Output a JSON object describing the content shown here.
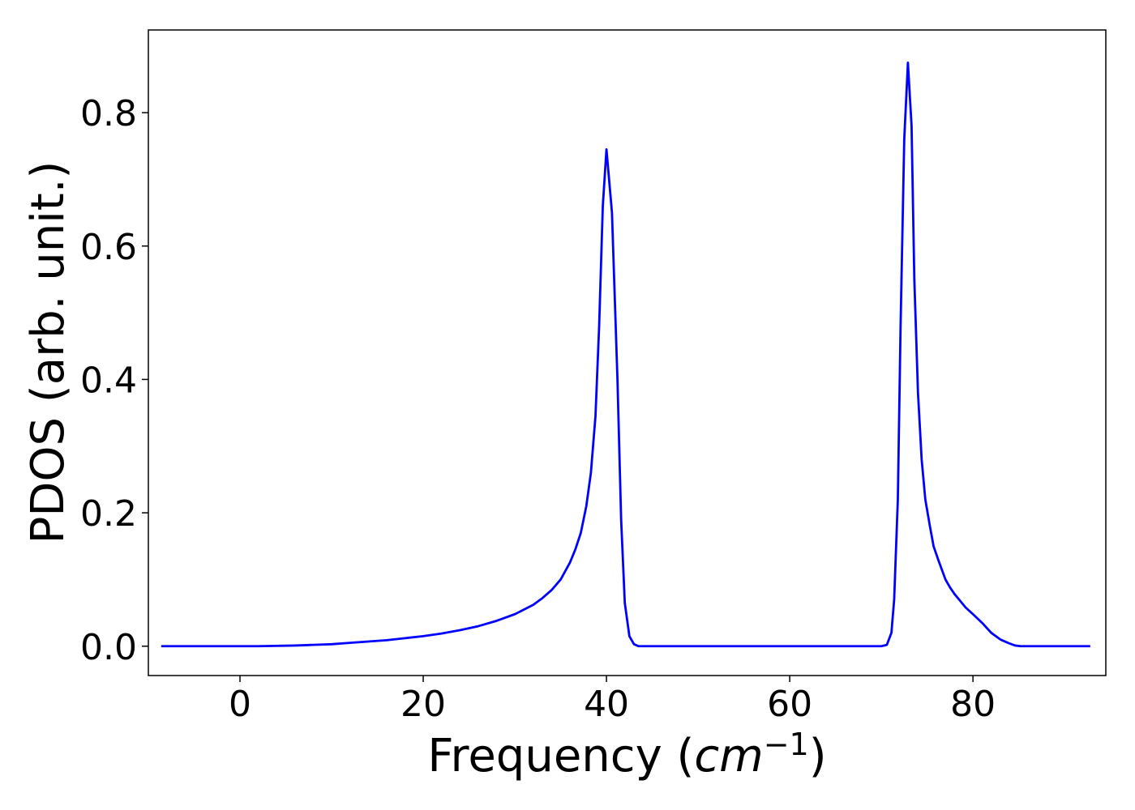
{
  "chart_data": {
    "type": "line",
    "xlabel": {
      "prefix": "Frequency (",
      "math_base": "cm",
      "math_sup": "−1",
      "suffix": ")"
    },
    "ylabel": "PDOS (arb. unit.)",
    "xlim": [
      -10,
      94.5
    ],
    "ylim": [
      -0.044,
      0.924
    ],
    "xticks": [
      0,
      20,
      40,
      60,
      80
    ],
    "xtick_labels": [
      "0",
      "20",
      "40",
      "60",
      "80"
    ],
    "yticks": [
      0.0,
      0.2,
      0.4,
      0.6,
      0.8
    ],
    "ytick_labels": [
      "0.0",
      "0.2",
      "0.4",
      "0.6",
      "0.8"
    ],
    "grid": false,
    "series": [
      {
        "color": "#0000ff",
        "x": [
          -8.6,
          2,
          6,
          8,
          10,
          12,
          14,
          16,
          18,
          20,
          22,
          24,
          26,
          28,
          30,
          32,
          33,
          34,
          35,
          36,
          36.6,
          37.2,
          37.8,
          38.3,
          38.8,
          39.2,
          39.6,
          40.0,
          40.6,
          41.2,
          41.6,
          42.0,
          42.5,
          43.0,
          43.5,
          44.0,
          45,
          50,
          60,
          70,
          70.6,
          71.1,
          71.4,
          71.8,
          72.1,
          72.5,
          72.9,
          73.3,
          73.6,
          74.0,
          74.4,
          74.8,
          75.3,
          75.7,
          76.2,
          76.6,
          77.0,
          77.5,
          78.0,
          78.6,
          79.2,
          80,
          81,
          82,
          83,
          84,
          84.6,
          85.2,
          86,
          87,
          90,
          92.8
        ],
        "y": [
          0.0,
          0.0,
          0.001,
          0.002,
          0.003,
          0.005,
          0.007,
          0.009,
          0.012,
          0.015,
          0.019,
          0.024,
          0.03,
          0.038,
          0.048,
          0.062,
          0.072,
          0.084,
          0.1,
          0.125,
          0.145,
          0.17,
          0.21,
          0.26,
          0.345,
          0.48,
          0.66,
          0.745,
          0.65,
          0.4,
          0.19,
          0.065,
          0.015,
          0.003,
          0.0,
          0.0,
          0.0,
          0.0,
          0.0,
          0.0,
          0.002,
          0.02,
          0.07,
          0.22,
          0.48,
          0.76,
          0.875,
          0.78,
          0.55,
          0.38,
          0.28,
          0.22,
          0.18,
          0.15,
          0.13,
          0.115,
          0.1,
          0.088,
          0.078,
          0.068,
          0.058,
          0.048,
          0.035,
          0.02,
          0.01,
          0.004,
          0.001,
          0.0,
          0.0,
          0.0,
          0.0,
          0.0
        ]
      }
    ]
  }
}
